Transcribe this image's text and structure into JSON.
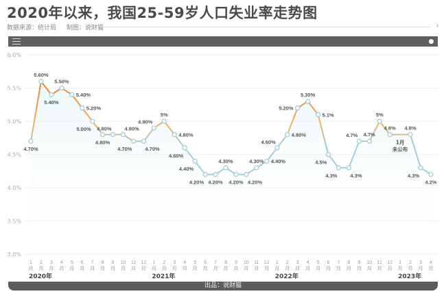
{
  "header": {
    "title": "2020年以来，我国25-59岁人口失业率走势图",
    "source": "数据来源：统计局",
    "maker": "制图：说财猫"
  },
  "footer": {
    "credit": "出品：说财猫"
  },
  "colors": {
    "high": "#f07a3a",
    "mid": "#f0b25a",
    "low": "#9fcfdc",
    "toolbar": "#606060"
  },
  "chart_data": {
    "type": "line",
    "title": "2020年以来，我国25-59岁人口失业率走势图",
    "xlabel": "",
    "ylabel": "",
    "ylim": [
      3.0,
      6.0
    ],
    "yticks": [
      "3.0%",
      "3.5%",
      "4.0%",
      "4.5%",
      "5.0%",
      "5.5%",
      "6.0%"
    ],
    "grid": true,
    "months": [
      "1",
      "2",
      "3",
      "4",
      "5",
      "6",
      "7",
      "8",
      "9",
      "10",
      "11",
      "12",
      "1",
      "2",
      "3",
      "4",
      "5",
      "6",
      "7",
      "8",
      "9",
      "10",
      "11",
      "12",
      "1",
      "2",
      "3",
      "4",
      "5",
      "6",
      "7",
      "8",
      "9",
      "10",
      "11",
      "12",
      "1",
      "2",
      "3",
      "4"
    ],
    "month_unit": "月",
    "years": [
      {
        "label": "2020年",
        "index": 0
      },
      {
        "label": "2021年",
        "index": 12
      },
      {
        "label": "2022年",
        "index": 24
      },
      {
        "label": "2023年",
        "index": 36
      }
    ],
    "values": [
      4.7,
      5.6,
      5.4,
      5.5,
      5.4,
      5.2,
      5.0,
      4.8,
      4.8,
      4.8,
      4.7,
      4.7,
      4.9,
      5.0,
      4.8,
      4.6,
      4.4,
      4.2,
      4.2,
      4.3,
      4.2,
      4.2,
      4.3,
      4.4,
      4.6,
      4.8,
      5.2,
      5.3,
      5.1,
      4.5,
      4.3,
      4.3,
      4.7,
      4.7,
      5.0,
      4.8,
      null,
      4.8,
      4.3,
      4.2
    ],
    "labels": [
      "4.70%",
      "5.60%",
      "5.40%",
      "5.50%",
      "5.40%",
      "5.20%",
      "5.00%",
      "4.80%",
      "4.80%",
      "4.80%",
      "4.70%",
      "4.70%",
      "4.90%",
      "5%",
      "4.80%",
      "4.60%",
      "4.40%",
      "4.20%",
      "4.20%",
      "4.30%",
      "4.20%",
      "4.20%",
      "4.30%",
      "4.40%",
      "4.60%",
      "4.80%",
      "5.20%",
      "5.30%",
      "5.1%",
      "4.5%",
      "4.3%",
      "4.3%",
      "4.7%",
      "4.7%",
      "5%",
      "4.8%",
      "",
      "4.8%",
      "4.3%",
      "4.2%"
    ],
    "annotation": {
      "text_line1": "1月",
      "text_line2": "未公布",
      "month_index": 36
    }
  }
}
